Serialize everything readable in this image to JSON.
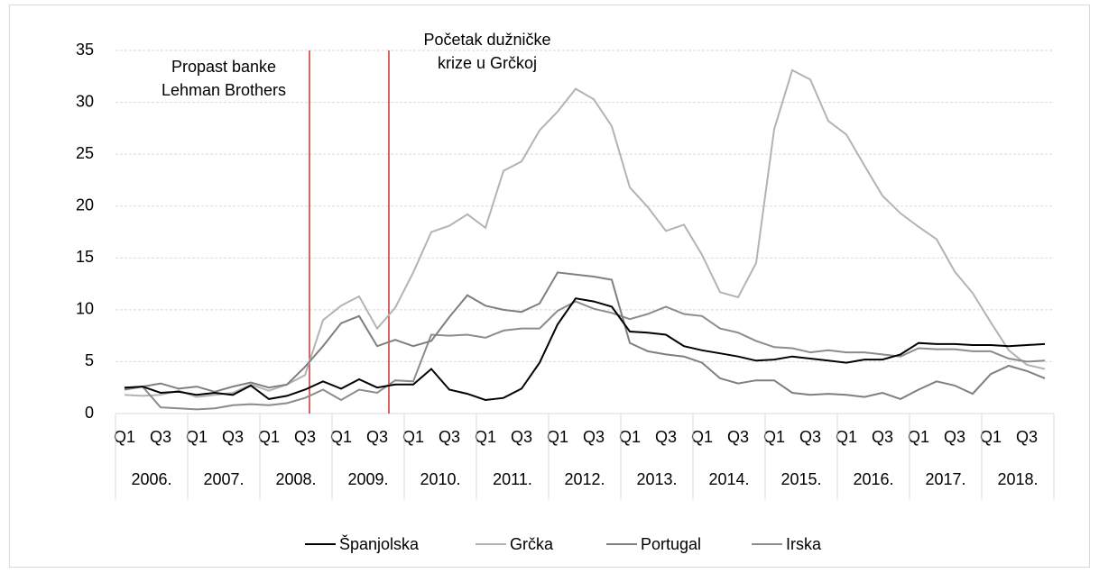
{
  "chart_data": {
    "type": "line",
    "categories": [
      "Q1",
      null,
      "Q3",
      null,
      "Q1",
      null,
      "Q3",
      null,
      "Q1",
      null,
      "Q3",
      null,
      "Q1",
      null,
      "Q3",
      null,
      "Q1",
      null,
      "Q3",
      null,
      "Q1",
      null,
      "Q3",
      null,
      "Q1",
      null,
      "Q3",
      null,
      "Q1",
      null,
      "Q3",
      null,
      "Q1",
      null,
      "Q3",
      null,
      "Q1",
      null,
      "Q3",
      null,
      "Q1",
      null,
      "Q3",
      null,
      "Q1",
      null,
      "Q3",
      null,
      "Q1",
      null,
      "Q3",
      null
    ],
    "year_groups": [
      "2006.",
      "2007.",
      "2008.",
      "2009.",
      "2010.",
      "2011.",
      "2012.",
      "2013.",
      "2014.",
      "2015.",
      "2016.",
      "2017.",
      "2018."
    ],
    "series": [
      {
        "name": "Španjolska",
        "color": "#000000",
        "values": [
          2.5,
          2.6,
          2.0,
          2.1,
          1.8,
          2.0,
          1.8,
          2.7,
          1.4,
          1.7,
          2.3,
          3.1,
          2.4,
          3.3,
          2.5,
          2.8,
          2.8,
          4.3,
          2.3,
          1.9,
          1.3,
          1.5,
          2.4,
          4.9,
          8.6,
          11.1,
          10.8,
          10.3,
          7.9,
          7.8,
          7.6,
          6.5,
          6.1,
          5.8,
          5.5,
          5.1,
          5.2,
          5.5,
          5.3,
          5.1,
          4.9,
          5.2,
          5.2,
          5.7,
          6.8,
          6.7,
          6.7,
          6.6,
          6.6,
          6.5,
          6.6,
          6.7
        ]
      },
      {
        "name": "Grčka",
        "color": "#b3b3b3",
        "values": [
          1.8,
          1.7,
          1.8,
          2.2,
          1.6,
          1.8,
          2.0,
          2.8,
          2.2,
          2.8,
          3.7,
          9.0,
          10.4,
          11.3,
          8.2,
          10.2,
          13.6,
          17.5,
          18.1,
          19.2,
          17.9,
          23.4,
          24.3,
          27.3,
          29.1,
          31.3,
          30.3,
          27.7,
          21.8,
          19.9,
          17.6,
          18.2,
          15.3,
          11.7,
          11.2,
          14.5,
          27.4,
          33.1,
          32.2,
          28.2,
          26.9,
          23.9,
          21.0,
          19.3,
          18.0,
          16.8,
          13.7,
          11.6,
          8.8,
          6.1,
          4.7,
          4.3
        ]
      },
      {
        "name": "Portugal",
        "color": "#7f7f7f",
        "values": [
          2.3,
          2.6,
          2.9,
          2.4,
          2.6,
          2.1,
          2.6,
          3.0,
          2.5,
          2.8,
          4.5,
          6.5,
          8.7,
          9.4,
          6.5,
          7.1,
          6.5,
          7.0,
          9.3,
          11.4,
          10.4,
          10.0,
          9.8,
          10.6,
          13.6,
          13.4,
          13.2,
          12.9,
          6.8,
          6.0,
          5.7,
          5.5,
          4.9,
          3.4,
          2.9,
          3.2,
          3.2,
          2.0,
          1.8,
          1.9,
          1.8,
          1.6,
          2.0,
          1.4,
          2.3,
          3.1,
          2.7,
          1.9,
          3.8,
          4.6,
          4.1,
          3.4
        ]
      },
      {
        "name": "Irska",
        "color": "#8c8c8c",
        "values": [
          2.4,
          2.6,
          0.6,
          0.5,
          0.4,
          0.5,
          0.8,
          0.9,
          0.8,
          1.0,
          1.5,
          2.3,
          1.3,
          2.3,
          2.0,
          3.2,
          3.1,
          7.6,
          7.5,
          7.6,
          7.3,
          8.0,
          8.2,
          8.2,
          9.9,
          10.8,
          10.1,
          9.7,
          9.1,
          9.6,
          10.3,
          9.6,
          9.4,
          8.2,
          7.8,
          7.0,
          6.4,
          6.3,
          5.9,
          6.1,
          5.9,
          5.9,
          5.7,
          5.5,
          6.3,
          6.2,
          6.2,
          6.0,
          6.0,
          5.3,
          5.0,
          5.1
        ]
      }
    ],
    "ylim": [
      0,
      35
    ],
    "yticks": [
      0,
      5,
      10,
      15,
      20,
      25,
      30,
      35
    ],
    "grid": true,
    "annotations": [
      {
        "lines": [
          "Propast banke",
          "Lehman Brothers"
        ],
        "color": "#c00000"
      },
      {
        "lines": [
          "Početak dužničke",
          "krize u Grčkoj"
        ],
        "color": "#c00000"
      }
    ],
    "legend": "bottom"
  }
}
